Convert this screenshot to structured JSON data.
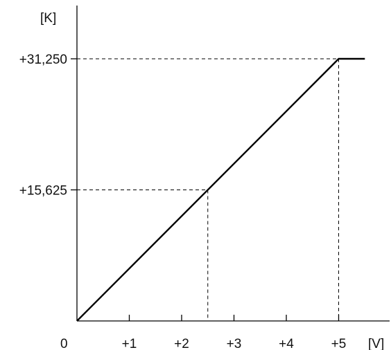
{
  "chart_data": {
    "type": "line",
    "title": "",
    "xlabel": "[V]",
    "ylabel": "[K]",
    "origin_label": "0",
    "xlim": [
      0,
      6
    ],
    "ylim": [
      0,
      40000
    ],
    "x_ticks": [
      {
        "value": 1,
        "label": "+1"
      },
      {
        "value": 2,
        "label": "+2"
      },
      {
        "value": 3,
        "label": "+3"
      },
      {
        "value": 4,
        "label": "+4"
      },
      {
        "value": 5,
        "label": "+5"
      }
    ],
    "y_ticks": [
      {
        "value": 15625,
        "label": "+15,625"
      },
      {
        "value": 31250,
        "label": "+31,250"
      }
    ],
    "series": [
      {
        "x": [
          0,
          5,
          5.5
        ],
        "y": [
          0,
          31250,
          31250
        ]
      }
    ],
    "reference_points": [
      {
        "x": 2.5,
        "y": 15625
      },
      {
        "x": 5,
        "y": 31250
      }
    ],
    "line_color": "#000000",
    "grid": false
  }
}
